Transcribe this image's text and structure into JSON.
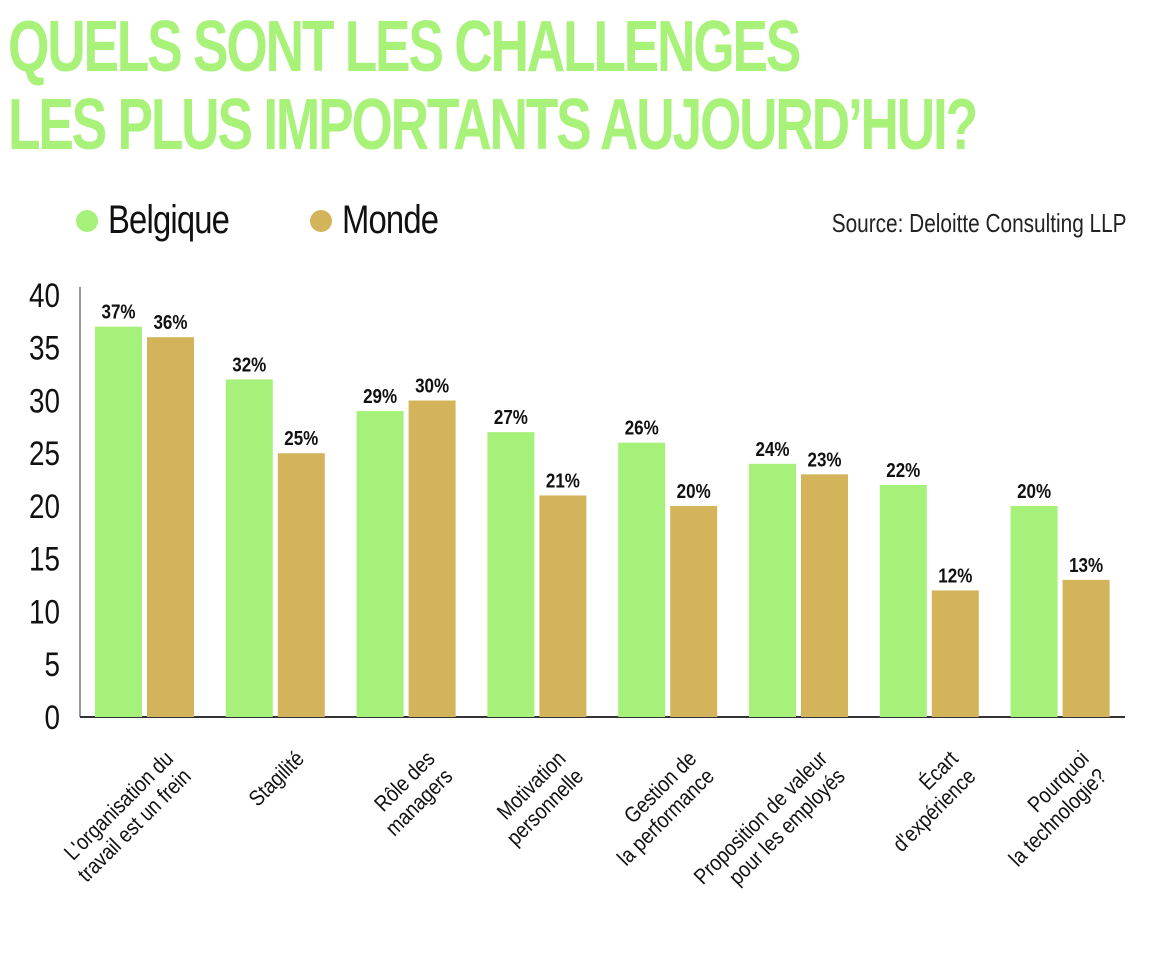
{
  "title_lines": [
    "QUELS SONT LES CHALLENGES",
    "LES PLUS IMPORTANTS AUJOURD’HUI?"
  ],
  "source": "Source: Deloitte Consulting LLP",
  "colors": {
    "title": "#a8f27a",
    "belgique": "#a6f17a",
    "monde": "#d4b45a",
    "axis": "#333333"
  },
  "legend": [
    {
      "label": "Belgique",
      "color": "#a6f17a"
    },
    {
      "label": "Monde",
      "color": "#d4b45a"
    }
  ],
  "chart_data": {
    "type": "bar",
    "title": "QUELS SONT LES CHALLENGES LES PLUS IMPORTANTS AUJOURD’HUI?",
    "categories": [
      [
        "L'organisation du",
        "travail est un frein"
      ],
      [
        "Stagilité"
      ],
      [
        "Rôle des",
        "managers"
      ],
      [
        "Motivation",
        "personnelle"
      ],
      [
        "Gestion de",
        "la performance"
      ],
      [
        "Proposition de valeur",
        "pour les employés"
      ],
      [
        "Écart",
        "d'expérience"
      ],
      [
        "Pourquoi",
        "la technologie?"
      ]
    ],
    "series": [
      {
        "name": "Belgique",
        "values": [
          37,
          32,
          29,
          27,
          26,
          24,
          22,
          20
        ],
        "labels": [
          "37%",
          "32%",
          "29%",
          "27%",
          "26%",
          "24%",
          "22%",
          "20%"
        ]
      },
      {
        "name": "Monde",
        "values": [
          36,
          25,
          30,
          21,
          20,
          23,
          12,
          13
        ],
        "labels": [
          "36%",
          "25%",
          "30%",
          "21%",
          "20%",
          "23%",
          "12%",
          "13%"
        ]
      }
    ],
    "yticks": [
      0,
      5,
      10,
      15,
      20,
      25,
      30,
      35,
      40
    ],
    "ylim": [
      0,
      40
    ],
    "grid": false,
    "legend_position": "top-left"
  }
}
